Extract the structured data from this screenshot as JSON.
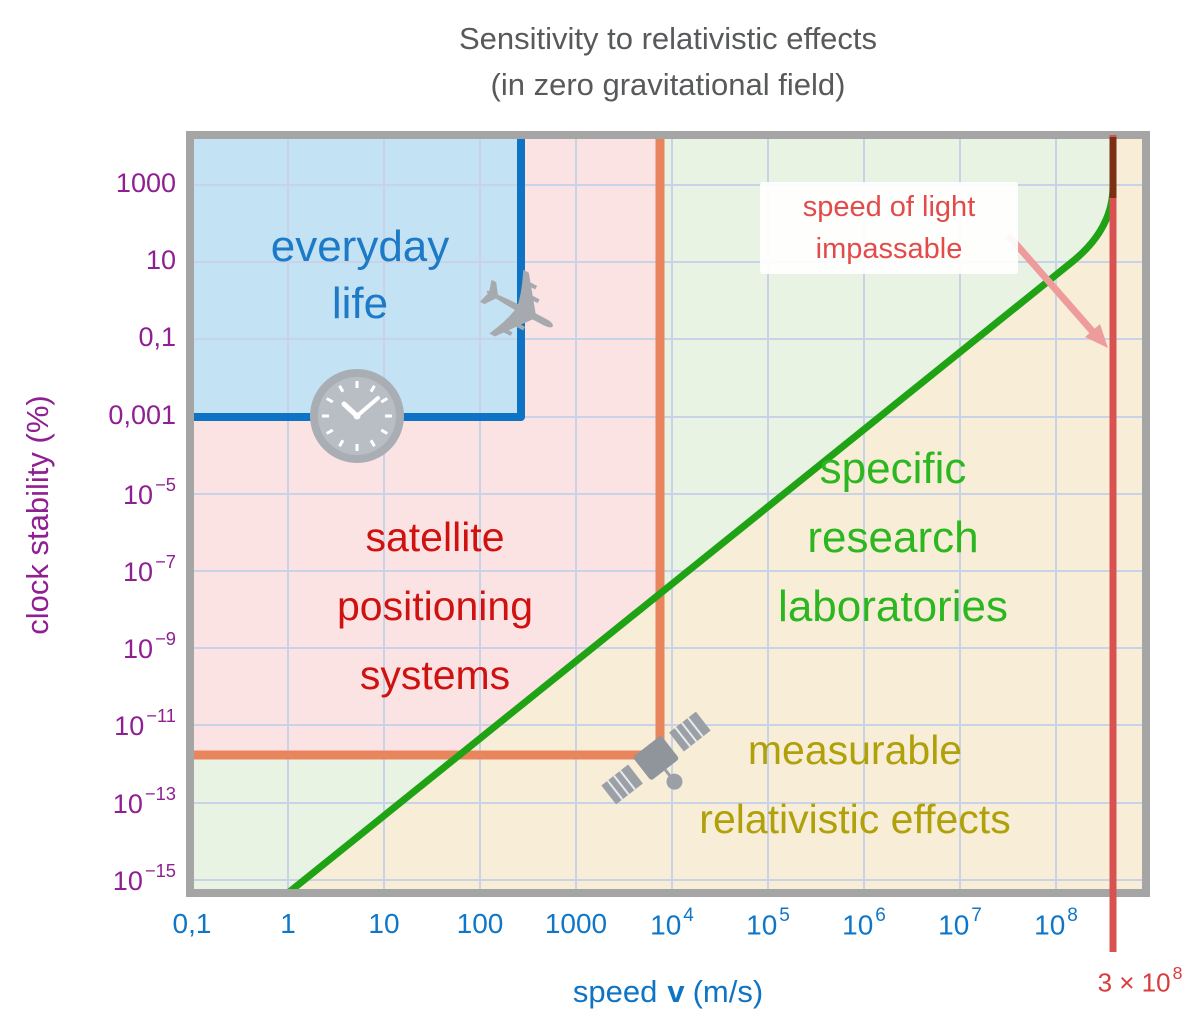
{
  "title": {
    "line1": "Sensitivity to relativistic effects",
    "line2": "(in zero gravitational field)"
  },
  "axes": {
    "x": {
      "label": {
        "prefix": "speed",
        "variable": "v",
        "suffix": "(m/s)"
      },
      "ticks": [
        "0,1",
        "1",
        "10",
        "100",
        "1000",
        "10^4",
        "10^5",
        "10^6",
        "10^7",
        "10^8"
      ],
      "color": "#1076c8"
    },
    "y": {
      "label": "clock stability (%)",
      "ticks": [
        "1000",
        "10",
        "0,1",
        "0,001",
        "10^−5",
        "10^−7",
        "10^−9",
        "10^−11",
        "10^−13",
        "10^−15"
      ],
      "color": "#8f1f92"
    },
    "speed_of_light_tick": "3 × 10^8"
  },
  "regions": {
    "everyday_life": {
      "lines": [
        "everyday",
        "life"
      ],
      "color": "#1c7ac6"
    },
    "satellite": {
      "lines": [
        "satellite",
        "positioning",
        "systems"
      ],
      "color": "#cf1110"
    },
    "research": {
      "lines": [
        "specific",
        "research",
        "laboratories"
      ],
      "color": "#2cb620"
    },
    "measurable": {
      "lines": [
        "measurable",
        "relativistic effects"
      ],
      "color": "#b0a00a"
    }
  },
  "annotation": {
    "lines": [
      "speed of light",
      "impassable"
    ],
    "color": "#e34b4b"
  },
  "icons": [
    "airplane-icon",
    "clock-icon",
    "satellite-icon"
  ],
  "palette": {
    "everyday_fill": "#c3e2f3",
    "satellite_fill": "#fbe3e3",
    "research_fill": "#e9f3e4",
    "measurable_fill": "#f8eed8",
    "everyday_boundary_line": "#0f73c5",
    "satellite_boundary_line": "#e8855c",
    "relativity_curve": "#1fa315",
    "speed_of_light_line": "#d85252",
    "speed_of_light_overlap": "#7c2f12",
    "grid": "#c9d3e8",
    "border": "#a5a5a5",
    "icon_gray": "#a6a9ad"
  },
  "chart_data": {
    "type": "line",
    "title": "Sensitivity to relativistic effects (in zero gravitational field)",
    "xlabel": "speed v (m/s)",
    "ylabel": "clock stability (%)",
    "x_scale": "log",
    "y_scale": "log",
    "x_ticks": [
      "0,1",
      "1",
      "10",
      "100",
      "1000",
      "10^4",
      "10^5",
      "10^6",
      "10^7",
      "10^8"
    ],
    "y_ticks": [
      "1000",
      "10",
      "0,1",
      "0,001",
      "10^−5",
      "10^−7",
      "10^−9",
      "10^−11",
      "10^−13",
      "10^−15"
    ],
    "grid": true,
    "legend": "none",
    "series": [
      {
        "name": "magnitude of relativistic time dilation (green boundary line)",
        "color": "#1fa315",
        "points": [
          {
            "speed_m_per_s": 1,
            "clock_stability_percent": 5e-16
          },
          {
            "speed_m_per_s": 100,
            "clock_stability_percent": 5e-12
          },
          {
            "speed_m_per_s": 10000,
            "clock_stability_percent": 5e-08
          },
          {
            "speed_m_per_s": 1000000,
            "clock_stability_percent": 0.0005
          },
          {
            "speed_m_per_s": 100000000,
            "clock_stability_percent": 6
          },
          {
            "speed_m_per_s": 300000000,
            "clock_stability_percent": "diverges — vertical asymptote at speed of light"
          }
        ]
      }
    ],
    "reference_lines": [
      {
        "name": "speed of light",
        "orientation": "vertical",
        "x": "3 × 10^8 m/s",
        "color": "#d85252",
        "label": "speed of light impassable"
      },
      {
        "name": "everyday-life boundary (blue)",
        "color": "#0f73c5",
        "corner": {
          "speed_m_per_s": 300,
          "clock_stability_percent": 0.001
        }
      },
      {
        "name": "satellite-positioning boundary (orange)",
        "color": "#e8855c",
        "corner": {
          "speed_m_per_s": 8000,
          "clock_stability_percent": 2e-12
        }
      }
    ],
    "regions": [
      {
        "label": "everyday life",
        "fill": "#c3e2f3",
        "text_color": "#1c7ac6",
        "extent": "v ≤ ~300 m/s and stability ≥ 0,001 %"
      },
      {
        "label": "satellite positioning systems",
        "fill": "#fbe3e3",
        "text_color": "#cf1110",
        "extent": "v ≤ ~8×10^3 m/s, stability ≥ ~10^−12 %, above green line"
      },
      {
        "label": "specific research laboratories",
        "fill": "#e9f3e4",
        "text_color": "#2cb620",
        "extent": "above green line beyond satellite region"
      },
      {
        "label": "measurable relativistic effects",
        "fill": "#f8eed8",
        "text_color": "#b0a00a",
        "extent": "below / right of green line"
      }
    ]
  }
}
